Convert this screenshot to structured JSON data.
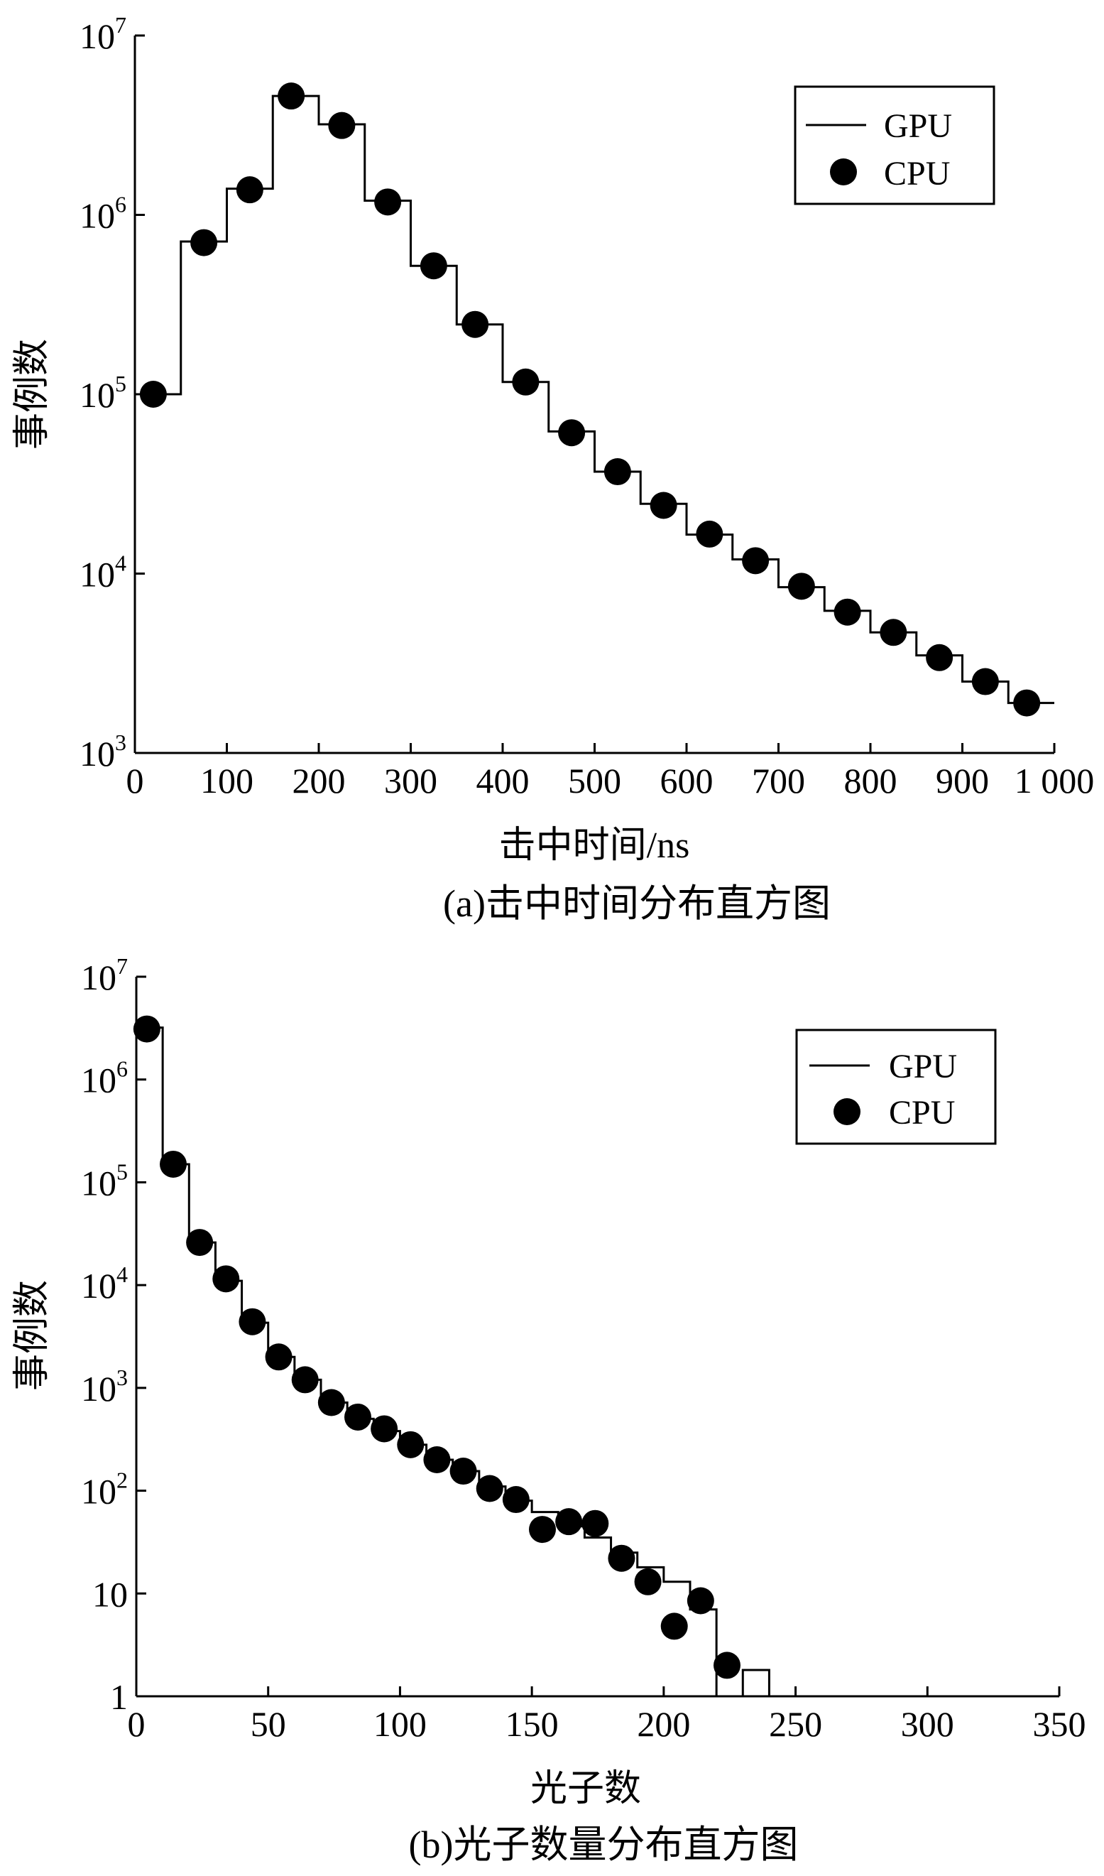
{
  "chart_data": [
    {
      "type": "line",
      "caption": "(a)击中时间分布直方图",
      "xlabel": "击中时间/ns",
      "ylabel": "事例数",
      "y_scale": "log",
      "xlim": [
        0,
        1000
      ],
      "ylim": [
        1000,
        10000000
      ],
      "x_ticks": [
        {
          "value": 0,
          "label": "0"
        },
        {
          "value": 100,
          "label": "100"
        },
        {
          "value": 200,
          "label": "200"
        },
        {
          "value": 300,
          "label": "300"
        },
        {
          "value": 400,
          "label": "400"
        },
        {
          "value": 500,
          "label": "500"
        },
        {
          "value": 600,
          "label": "600"
        },
        {
          "value": 700,
          "label": "700"
        },
        {
          "value": 800,
          "label": "800"
        },
        {
          "value": 900,
          "label": "900"
        },
        {
          "value": 1000,
          "label": "1 000"
        }
      ],
      "y_ticks": [
        {
          "value": 1000,
          "base": "10",
          "exp": "3"
        },
        {
          "value": 10000,
          "base": "10",
          "exp": "4"
        },
        {
          "value": 100000,
          "base": "10",
          "exp": "5"
        },
        {
          "value": 1000000,
          "base": "10",
          "exp": "6"
        },
        {
          "value": 10000000,
          "base": "10",
          "exp": "7"
        }
      ],
      "legend": {
        "position": "top-right",
        "entries": [
          "GPU",
          "CPU"
        ]
      },
      "series": [
        {
          "name": "GPU",
          "style": "step",
          "color": "#000000",
          "bin_width": 50,
          "bin_starts": [
            0,
            50,
            100,
            150,
            200,
            250,
            300,
            350,
            400,
            450,
            500,
            550,
            600,
            650,
            700,
            750,
            800,
            850,
            900,
            950
          ],
          "values": [
            100000,
            710000,
            1400000,
            4600000,
            3200000,
            1200000,
            520000,
            245000,
            117000,
            62000,
            37000,
            24500,
            16500,
            12000,
            8400,
            6200,
            4700,
            3500,
            2500,
            1900
          ]
        },
        {
          "name": "CPU",
          "style": "scatter",
          "color": "#000000",
          "x": [
            20,
            75,
            125,
            170,
            225,
            275,
            325,
            370,
            425,
            475,
            525,
            575,
            625,
            675,
            725,
            775,
            825,
            875,
            925,
            970
          ],
          "values": [
            100000,
            700000,
            1380000,
            4600000,
            3150000,
            1180000,
            520000,
            245000,
            117000,
            61000,
            37000,
            24000,
            16600,
            11800,
            8500,
            6100,
            4700,
            3400,
            2500,
            1900
          ]
        }
      ]
    },
    {
      "type": "line",
      "caption": "(b)光子数量分布直方图",
      "xlabel": "光子数",
      "ylabel": "事例数",
      "y_scale": "log",
      "xlim": [
        0,
        350
      ],
      "ylim": [
        1,
        10000000
      ],
      "x_ticks": [
        {
          "value": 0,
          "label": "0"
        },
        {
          "value": 50,
          "label": "50"
        },
        {
          "value": 100,
          "label": "100"
        },
        {
          "value": 150,
          "label": "150"
        },
        {
          "value": 200,
          "label": "200"
        },
        {
          "value": 250,
          "label": "250"
        },
        {
          "value": 300,
          "label": "300"
        },
        {
          "value": 350,
          "label": "350"
        }
      ],
      "y_ticks": [
        {
          "value": 1,
          "base": "1",
          "exp": ""
        },
        {
          "value": 10,
          "base": "10",
          "exp": ""
        },
        {
          "value": 100,
          "base": "10",
          "exp": "2"
        },
        {
          "value": 1000,
          "base": "10",
          "exp": "3"
        },
        {
          "value": 10000,
          "base": "10",
          "exp": "4"
        },
        {
          "value": 100000,
          "base": "10",
          "exp": "5"
        },
        {
          "value": 1000000,
          "base": "10",
          "exp": "6"
        },
        {
          "value": 10000000,
          "base": "10",
          "exp": "7"
        }
      ],
      "legend": {
        "position": "top-right",
        "entries": [
          "GPU",
          "CPU"
        ]
      },
      "series": [
        {
          "name": "GPU",
          "style": "step",
          "color": "#000000",
          "bin_width": 10,
          "bin_starts": [
            0,
            10,
            20,
            30,
            40,
            50,
            60,
            70,
            80,
            90,
            100,
            110,
            120,
            130,
            140,
            150,
            160,
            170,
            180,
            190,
            200,
            210,
            220,
            230
          ],
          "values": [
            3200000,
            150000,
            26000,
            11000,
            4300,
            2000,
            1200,
            720,
            500,
            380,
            280,
            200,
            155,
            110,
            80,
            62,
            45,
            35,
            25,
            18,
            13,
            7,
            1,
            1.8
          ]
        },
        {
          "name": "CPU",
          "style": "scatter",
          "color": "#000000",
          "x": [
            4,
            14,
            24,
            34,
            44,
            54,
            64,
            74,
            84,
            94,
            104,
            114,
            124,
            134,
            144,
            154,
            164,
            174,
            184,
            194,
            204,
            214,
            224
          ],
          "values": [
            3100000,
            150000,
            26000,
            11500,
            4400,
            2000,
            1200,
            720,
            520,
            400,
            280,
            200,
            155,
            105,
            82,
            42,
            50,
            48,
            22,
            13,
            4.8,
            8.5,
            2
          ]
        }
      ]
    }
  ]
}
